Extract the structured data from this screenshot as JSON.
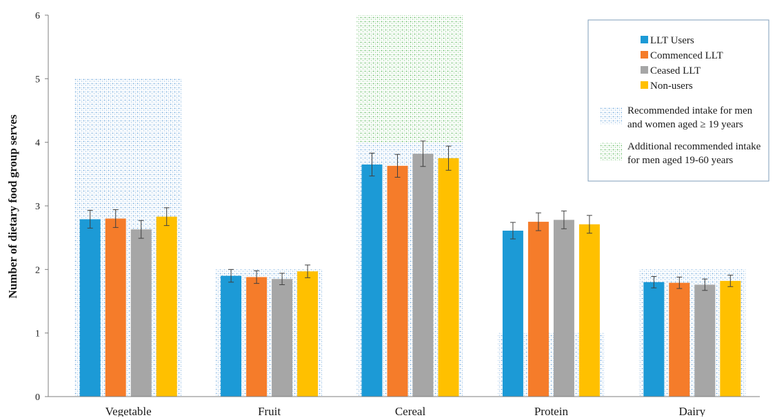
{
  "chart_data": {
    "type": "bar",
    "title": "",
    "xlabel": "",
    "ylabel": "Number of dietary food group serves",
    "ylim": [
      0,
      6
    ],
    "yticks": [
      0,
      1,
      2,
      3,
      4,
      5,
      6
    ],
    "grid": false,
    "legend_position": "top-right",
    "categories": [
      "Vegetable",
      "Fruit",
      "Cereal",
      "Protein",
      "Dairy"
    ],
    "series": [
      {
        "name": "LLT Users",
        "color": "#1c9ad6",
        "values": [
          2.79,
          1.9,
          3.65,
          2.61,
          1.8
        ],
        "errors": [
          0.14,
          0.1,
          0.18,
          0.13,
          0.09
        ]
      },
      {
        "name": "Commenced LLT",
        "color": "#f57c2a",
        "values": [
          2.8,
          1.88,
          3.63,
          2.75,
          1.79
        ],
        "errors": [
          0.14,
          0.1,
          0.18,
          0.14,
          0.09
        ]
      },
      {
        "name": "Ceased LLT",
        "color": "#a6a6a6",
        "values": [
          2.63,
          1.85,
          3.82,
          2.78,
          1.76
        ],
        "errors": [
          0.14,
          0.09,
          0.2,
          0.14,
          0.09
        ]
      },
      {
        "name": "Non-users",
        "color": "#ffc000",
        "values": [
          2.83,
          1.97,
          3.75,
          2.71,
          1.82
        ],
        "errors": [
          0.14,
          0.1,
          0.19,
          0.14,
          0.09
        ]
      }
    ],
    "recommended_intake": {
      "legend": "Recommended intake for men and women aged ≥ 19 years",
      "legend_lines": [
        "Recommended intake for men",
        "and women aged ≥ 19 years"
      ],
      "color": "#6fa8dc",
      "values": [
        5.0,
        2.0,
        4.0,
        1.0,
        2.0
      ]
    },
    "additional_intake_men": {
      "legend": "Additional recommended intake for men aged 19-60 years",
      "legend_lines": [
        "Additional recommended intake",
        "for men aged 19-60 years"
      ],
      "color": "#5cb85c",
      "ranges": [
        null,
        null,
        [
          4.0,
          6.0
        ],
        null,
        null
      ]
    }
  }
}
